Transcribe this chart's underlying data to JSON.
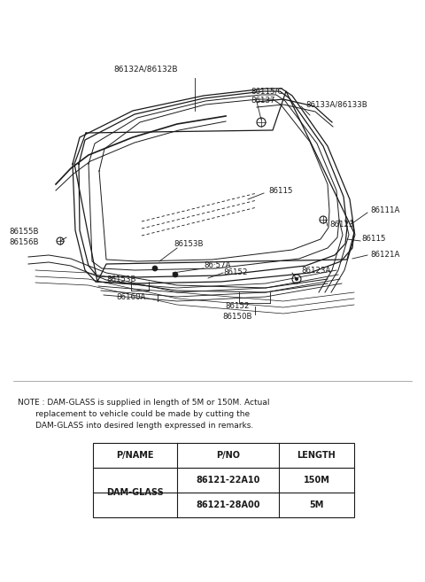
{
  "bg_color": "#ffffff",
  "fig_width": 4.8,
  "fig_height": 6.57,
  "dpi": 100,
  "note_text_line1": "NOTE : DAM-GLASS is supplied in length of 5M or 150M. Actual",
  "note_text_line2": "       replacement to vehicle could be made by cutting the",
  "note_text_line3": "       DAM-GLASS into desired length expressed in remarks.",
  "table_headers": [
    "P/NAME",
    "P/NO",
    "LENGTH"
  ],
  "table_row1": [
    "DAM-GLASS",
    "86121-22A10",
    "150M"
  ],
  "table_row2": [
    "",
    "86121-28A00",
    "5M"
  ]
}
